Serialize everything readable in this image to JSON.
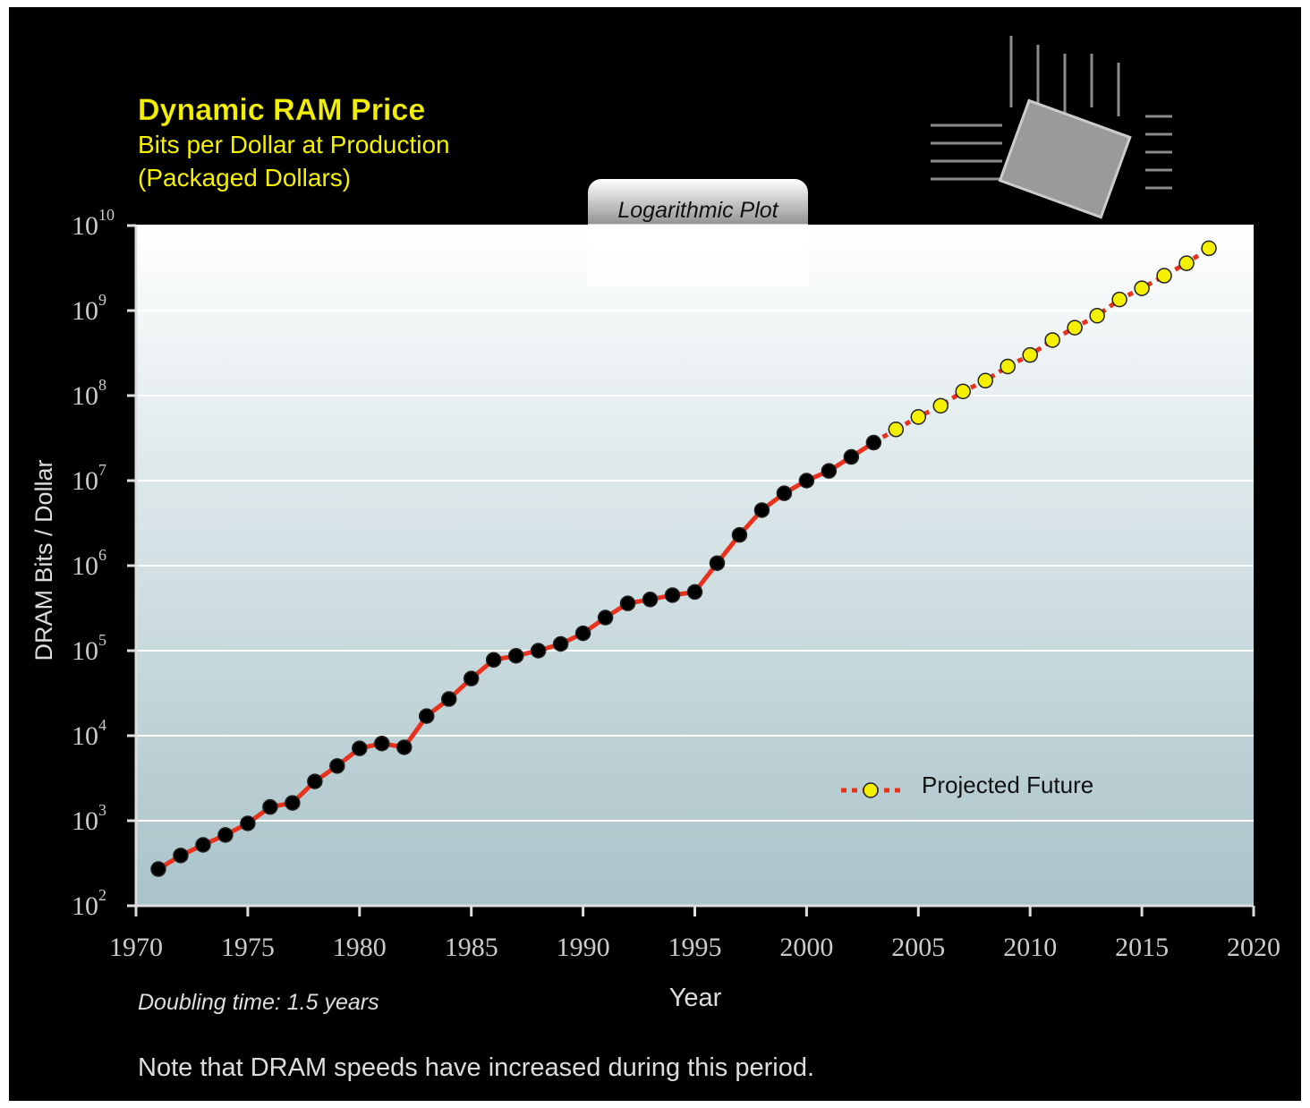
{
  "chart_data": {
    "type": "line",
    "title": "Dynamic RAM Price",
    "subtitle": [
      "Bits per Dollar at Production",
      "(Packaged Dollars)"
    ],
    "annotation": "Logarithmic Plot",
    "y_label": "DRAM Bits / Dollar",
    "x_label": "Year",
    "footnote": "Doubling time: 1.5 years",
    "note": "Note that DRAM speeds have increased during this period.",
    "log_y": true,
    "grid": true,
    "legend": "lower right",
    "xlim": [
      1970,
      2020
    ],
    "xticks": [
      1970,
      1975,
      1980,
      1985,
      1990,
      1995,
      2000,
      2005,
      2010,
      2015,
      2020
    ],
    "ylim": [
      100,
      10000000000
    ],
    "yticks": [
      {
        "value": 100,
        "label": "10",
        "exponent": "2"
      },
      {
        "value": 1000,
        "label": "10",
        "exponent": "3"
      },
      {
        "value": 10000,
        "label": "10",
        "exponent": "4"
      },
      {
        "value": 100000,
        "label": "10",
        "exponent": "5"
      },
      {
        "value": 1000000,
        "label": "10",
        "exponent": "6"
      },
      {
        "value": 10000000,
        "label": "10",
        "exponent": "7"
      },
      {
        "value": 100000000,
        "label": "10",
        "exponent": "8"
      },
      {
        "value": 1000000000,
        "label": "10",
        "exponent": "9"
      },
      {
        "value": 10000000000,
        "label": "10",
        "exponent": "10"
      }
    ],
    "series": [
      {
        "color": "#e8321e",
        "marker_color": "#000000",
        "line_style": "solid",
        "x": [
          1971,
          1972,
          1973,
          1974,
          1975,
          1976,
          1977,
          1978,
          1979,
          1980,
          1981,
          1982,
          1983,
          1984,
          1985,
          1986,
          1987,
          1988,
          1989,
          1990,
          1991,
          1992,
          1993,
          1994,
          1995,
          1996,
          1997,
          1998,
          1999,
          2000,
          2001,
          2002,
          2003
        ],
        "values": [
          270,
          390,
          520,
          680,
          930,
          1450,
          1620,
          2900,
          4400,
          7100,
          8100,
          7300,
          17000,
          27000,
          47000,
          78000,
          87000,
          100000,
          120000,
          160000,
          245000,
          360000,
          400000,
          450000,
          490000,
          1070000,
          2300000,
          4500000,
          7100000,
          10000000,
          13000000,
          19000000,
          28000000
        ]
      },
      {
        "name": "Projected Future",
        "color": "#e8321e",
        "marker_color": "#f5f000",
        "line_style": "dotted",
        "x": [
          2004,
          2005,
          2006,
          2007,
          2008,
          2009,
          2010,
          2011,
          2012,
          2013,
          2014,
          2015,
          2016,
          2017,
          2018
        ],
        "values": [
          40000000,
          56000000,
          76000000,
          112000000,
          150000000,
          220000000,
          300000000,
          450000000,
          630000000,
          870000000,
          1350000000,
          1830000000,
          2570000000,
          3600000000,
          5400000000
        ]
      }
    ]
  }
}
